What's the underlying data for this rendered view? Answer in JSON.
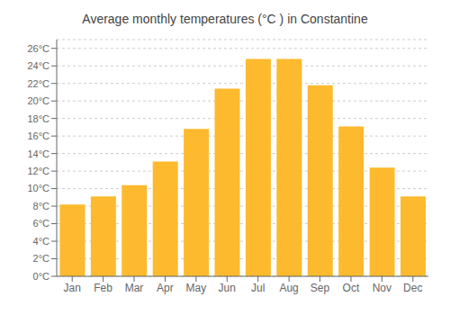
{
  "chart_data": {
    "type": "bar",
    "title": "Average monthly temperatures (°C ) in Constantine",
    "categories": [
      "Jan",
      "Feb",
      "Mar",
      "Apr",
      "May",
      "Jun",
      "Jul",
      "Aug",
      "Sep",
      "Oct",
      "Nov",
      "Dec"
    ],
    "values": [
      8.2,
      9.1,
      10.4,
      13.1,
      16.8,
      21.4,
      24.8,
      24.8,
      21.8,
      17.1,
      12.4,
      9.1
    ],
    "color": "#FDBA2E",
    "ylim": [
      0,
      27
    ],
    "yticks": [
      {
        "value": 0,
        "label": "0°C"
      },
      {
        "value": 2,
        "label": "2°C"
      },
      {
        "value": 4,
        "label": "4°C"
      },
      {
        "value": 6,
        "label": "6°C"
      },
      {
        "value": 8,
        "label": "8°C"
      },
      {
        "value": 10,
        "label": "10°C"
      },
      {
        "value": 12,
        "label": "12°C"
      },
      {
        "value": 14,
        "label": "14°C"
      },
      {
        "value": 16,
        "label": "16°C"
      },
      {
        "value": 18,
        "label": "18°C"
      },
      {
        "value": 20,
        "label": "20°C"
      },
      {
        "value": 22,
        "label": "22°C"
      },
      {
        "value": 24,
        "label": "24°C"
      },
      {
        "value": 26,
        "label": "26°C"
      }
    ],
    "grid": true
  }
}
